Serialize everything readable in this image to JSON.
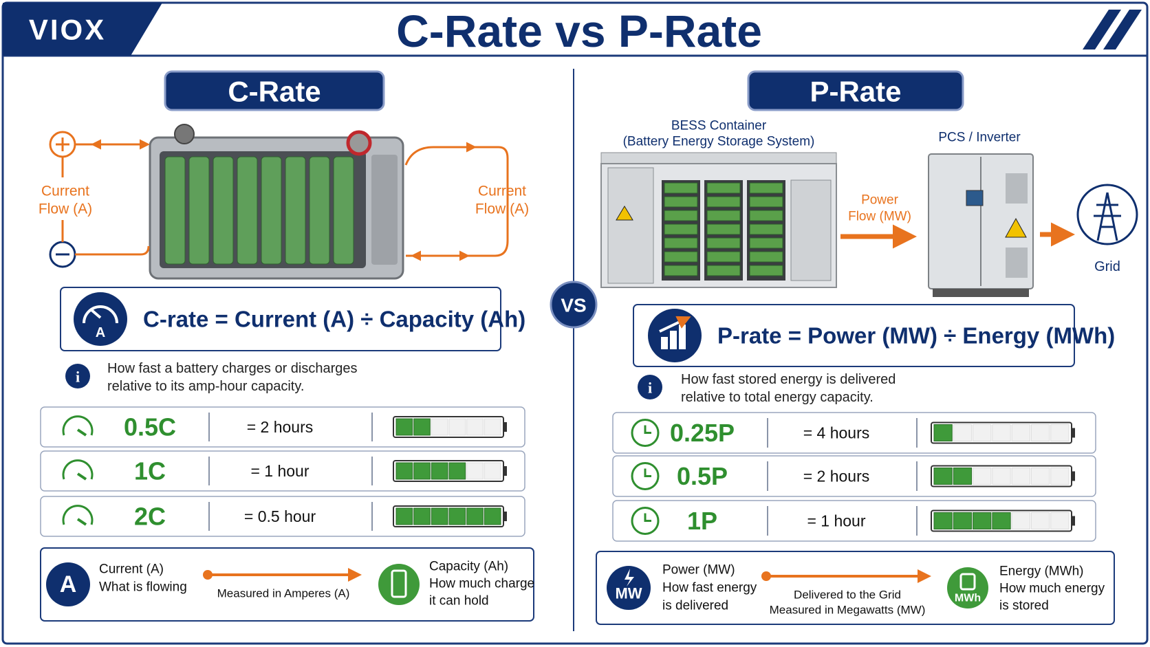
{
  "header": {
    "logo": "VIOX",
    "title": "C-Rate vs P-Rate"
  },
  "vs": "VS",
  "c_rate": {
    "title": "C-Rate",
    "current_flow_left": [
      "Current",
      "Flow (A)"
    ],
    "current_flow_right": [
      "Current",
      "Flow (A)"
    ],
    "formula_icon": "A",
    "formula": "C-rate = Current (A) ÷ Capacity (Ah)",
    "info": [
      "How fast a battery charges or discharges",
      "relative to its amp-hour capacity."
    ],
    "rows": [
      {
        "rate": "0.5C",
        "duration": "= 2 hours"
      },
      {
        "rate": "1C",
        "duration": "= 1 hour"
      },
      {
        "rate": "2C",
        "duration": "= 0.5 hour"
      }
    ],
    "legend": {
      "from_icon": "A",
      "from": [
        "Current (A)",
        "What is flowing"
      ],
      "arrow": [
        "Measured in Amperes (A)"
      ],
      "to": [
        "Capacity (Ah)",
        "How much charge",
        "it can hold"
      ]
    }
  },
  "p_rate": {
    "title": "P-Rate",
    "container": [
      "BESS Container",
      "(Battery Energy Storage System)"
    ],
    "power_flow": [
      "Power",
      "Flow (MW)"
    ],
    "inverter": "PCS / Inverter",
    "grid": "Grid",
    "formula": "P-rate = Power (MW) ÷ Energy (MWh)",
    "info": [
      "How fast stored energy is delivered",
      "relative to total energy capacity."
    ],
    "rows": [
      {
        "rate": "0.25P",
        "duration": "= 4 hours"
      },
      {
        "rate": "0.5P",
        "duration": "= 2 hours"
      },
      {
        "rate": "1P",
        "duration": "= 1 hour"
      }
    ],
    "legend": {
      "from_icon": "MW",
      "from": [
        "Power (MW)",
        "How fast energy",
        "is delivered"
      ],
      "arrow": [
        "Delivered to the Grid",
        "Measured in Megawatts (MW)"
      ],
      "to_icon": "MWh",
      "to": [
        "Energy (MWh)",
        "How much energy",
        "is stored"
      ]
    }
  }
}
